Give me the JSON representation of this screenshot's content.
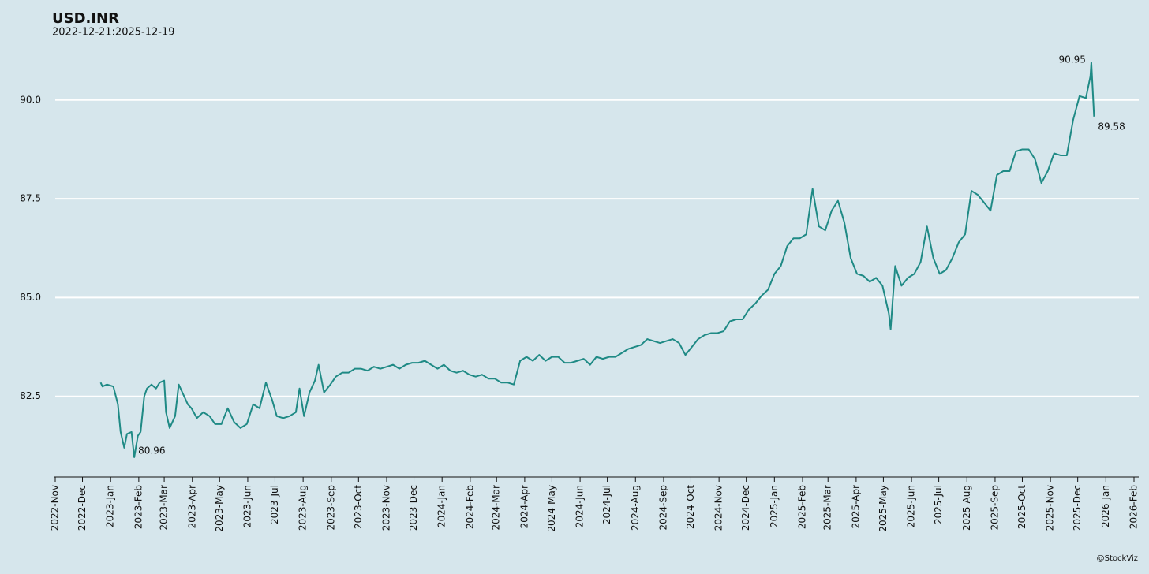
{
  "chart_data": {
    "type": "line",
    "title": "USD.INR",
    "subtitle": "2022-12-21:2025-12-19",
    "caption": "@StockViz",
    "x": [
      "2022-12-21",
      "2022-12-23",
      "2022-12-28",
      "2023-01-04",
      "2023-01-09",
      "2023-01-12",
      "2023-01-16",
      "2023-01-19",
      "2023-01-24",
      "2023-01-27",
      "2023-01-31",
      "2023-02-03",
      "2023-02-07",
      "2023-02-10",
      "2023-02-15",
      "2023-02-20",
      "2023-02-24",
      "2023-03-01",
      "2023-03-03",
      "2023-03-07",
      "2023-03-13",
      "2023-03-17",
      "2023-03-21",
      "2023-03-27",
      "2023-03-31",
      "2023-04-06",
      "2023-04-13",
      "2023-04-20",
      "2023-04-26",
      "2023-05-03",
      "2023-05-10",
      "2023-05-17",
      "2023-05-24",
      "2023-05-31",
      "2023-06-07",
      "2023-06-14",
      "2023-06-21",
      "2023-06-28",
      "2023-07-03",
      "2023-07-10",
      "2023-07-17",
      "2023-07-24",
      "2023-07-28",
      "2023-08-02",
      "2023-08-08",
      "2023-08-14",
      "2023-08-18",
      "2023-08-24",
      "2023-08-31",
      "2023-09-06",
      "2023-09-13",
      "2023-09-20",
      "2023-09-27",
      "2023-10-04",
      "2023-10-11",
      "2023-10-18",
      "2023-10-25",
      "2023-11-01",
      "2023-11-08",
      "2023-11-15",
      "2023-11-22",
      "2023-11-29",
      "2023-12-06",
      "2023-12-13",
      "2023-12-20",
      "2023-12-27",
      "2024-01-03",
      "2024-01-10",
      "2024-01-17",
      "2024-01-24",
      "2024-01-31",
      "2024-02-07",
      "2024-02-14",
      "2024-02-21",
      "2024-02-28",
      "2024-03-06",
      "2024-03-13",
      "2024-03-20",
      "2024-03-27",
      "2024-04-03",
      "2024-04-10",
      "2024-04-17",
      "2024-04-24",
      "2024-05-01",
      "2024-05-08",
      "2024-05-15",
      "2024-05-22",
      "2024-05-29",
      "2024-06-05",
      "2024-06-12",
      "2024-06-19",
      "2024-06-26",
      "2024-07-03",
      "2024-07-10",
      "2024-07-17",
      "2024-07-24",
      "2024-07-31",
      "2024-08-07",
      "2024-08-14",
      "2024-08-21",
      "2024-08-28",
      "2024-09-04",
      "2024-09-11",
      "2024-09-18",
      "2024-09-25",
      "2024-10-02",
      "2024-10-09",
      "2024-10-16",
      "2024-10-23",
      "2024-10-30",
      "2024-11-06",
      "2024-11-13",
      "2024-11-20",
      "2024-11-27",
      "2024-12-04",
      "2024-12-11",
      "2024-12-18",
      "2024-12-25",
      "2025-01-01",
      "2025-01-08",
      "2025-01-15",
      "2025-01-22",
      "2025-01-29",
      "2025-02-05",
      "2025-02-12",
      "2025-02-19",
      "2025-02-26",
      "2025-03-05",
      "2025-03-12",
      "2025-03-19",
      "2025-03-26",
      "2025-04-02",
      "2025-04-09",
      "2025-04-16",
      "2025-04-23",
      "2025-04-30",
      "2025-05-07",
      "2025-05-09",
      "2025-05-14",
      "2025-05-21",
      "2025-05-28",
      "2025-06-04",
      "2025-06-11",
      "2025-06-18",
      "2025-06-25",
      "2025-07-02",
      "2025-07-09",
      "2025-07-16",
      "2025-07-23",
      "2025-07-30",
      "2025-08-06",
      "2025-08-13",
      "2025-08-20",
      "2025-08-27",
      "2025-09-03",
      "2025-09-10",
      "2025-09-17",
      "2025-09-24",
      "2025-10-01",
      "2025-10-08",
      "2025-10-15",
      "2025-10-22",
      "2025-10-29",
      "2025-11-05",
      "2025-11-12",
      "2025-11-19",
      "2025-11-26",
      "2025-12-03",
      "2025-12-10",
      "2025-12-15",
      "2025-12-16",
      "2025-12-19"
    ],
    "series": [
      {
        "name": "USD.INR",
        "color": "#1f8a85",
        "values": [
          82.85,
          82.75,
          82.8,
          82.75,
          82.3,
          81.6,
          81.2,
          81.55,
          81.6,
          80.96,
          81.5,
          81.6,
          82.5,
          82.7,
          82.8,
          82.7,
          82.85,
          82.9,
          82.1,
          81.7,
          82.0,
          82.8,
          82.6,
          82.3,
          82.2,
          81.95,
          82.1,
          82.0,
          81.8,
          81.8,
          82.2,
          81.85,
          81.7,
          81.8,
          82.3,
          82.2,
          82.85,
          82.4,
          82.0,
          81.95,
          82.0,
          82.1,
          82.7,
          82.0,
          82.6,
          82.9,
          83.3,
          82.6,
          82.8,
          83.0,
          83.1,
          83.1,
          83.2,
          83.2,
          83.15,
          83.25,
          83.2,
          83.25,
          83.3,
          83.2,
          83.3,
          83.35,
          83.35,
          83.4,
          83.3,
          83.2,
          83.3,
          83.15,
          83.1,
          83.15,
          83.05,
          83.0,
          83.05,
          82.95,
          82.95,
          82.85,
          82.85,
          82.8,
          83.4,
          83.5,
          83.4,
          83.55,
          83.4,
          83.5,
          83.5,
          83.35,
          83.35,
          83.4,
          83.45,
          83.3,
          83.5,
          83.45,
          83.5,
          83.5,
          83.6,
          83.7,
          83.75,
          83.8,
          83.95,
          83.9,
          83.85,
          83.9,
          83.95,
          83.85,
          83.55,
          83.75,
          83.95,
          84.05,
          84.1,
          84.1,
          84.15,
          84.4,
          84.45,
          84.45,
          84.7,
          84.85,
          85.05,
          85.2,
          85.6,
          85.8,
          86.3,
          86.5,
          86.5,
          86.6,
          87.75,
          86.8,
          86.7,
          87.2,
          87.45,
          86.9,
          86.0,
          85.6,
          85.55,
          85.4,
          85.5,
          85.3,
          84.6,
          84.2,
          85.8,
          85.3,
          85.5,
          85.6,
          85.9,
          86.8,
          86.0,
          85.6,
          85.7,
          86.0,
          86.4,
          86.6,
          87.7,
          87.6,
          87.4,
          87.2,
          88.1,
          88.2,
          88.2,
          88.7,
          88.75,
          88.75,
          88.5,
          87.9,
          88.2,
          88.65,
          88.6,
          88.6,
          89.5,
          90.1,
          90.05,
          90.6,
          90.95,
          89.58
        ]
      }
    ],
    "annotations": [
      {
        "x": "2023-01-27",
        "value": 80.96,
        "side": "right"
      },
      {
        "x": "2025-12-16",
        "value": 90.95,
        "side": "left"
      },
      {
        "x": "2025-12-19",
        "value": 89.58,
        "side": "right"
      }
    ],
    "xlim": [
      "2022-11-01",
      "2026-02-01"
    ],
    "xticks": [
      {
        "value": "2022-11-01",
        "label": "2022-Nov"
      },
      {
        "value": "2022-12-01",
        "label": "2022-Dec"
      },
      {
        "value": "2023-01-01",
        "label": "2023-Jan"
      },
      {
        "value": "2023-02-01",
        "label": "2023-Feb"
      },
      {
        "value": "2023-03-01",
        "label": "2023-Mar"
      },
      {
        "value": "2023-04-01",
        "label": "2023-Apr"
      },
      {
        "value": "2023-05-01",
        "label": "2023-May"
      },
      {
        "value": "2023-06-01",
        "label": "2023-Jun"
      },
      {
        "value": "2023-07-01",
        "label": "2023-Jul"
      },
      {
        "value": "2023-08-01",
        "label": "2023-Aug"
      },
      {
        "value": "2023-09-01",
        "label": "2023-Sep"
      },
      {
        "value": "2023-10-01",
        "label": "2023-Oct"
      },
      {
        "value": "2023-11-01",
        "label": "2023-Nov"
      },
      {
        "value": "2023-12-01",
        "label": "2023-Dec"
      },
      {
        "value": "2024-01-01",
        "label": "2024-Jan"
      },
      {
        "value": "2024-02-01",
        "label": "2024-Feb"
      },
      {
        "value": "2024-03-01",
        "label": "2024-Mar"
      },
      {
        "value": "2024-04-01",
        "label": "2024-Apr"
      },
      {
        "value": "2024-05-01",
        "label": "2024-May"
      },
      {
        "value": "2024-06-01",
        "label": "2024-Jun"
      },
      {
        "value": "2024-07-01",
        "label": "2024-Jul"
      },
      {
        "value": "2024-08-01",
        "label": "2024-Aug"
      },
      {
        "value": "2024-09-01",
        "label": "2024-Sep"
      },
      {
        "value": "2024-10-01",
        "label": "2024-Oct"
      },
      {
        "value": "2024-11-01",
        "label": "2024-Nov"
      },
      {
        "value": "2024-12-01",
        "label": "2024-Dec"
      },
      {
        "value": "2025-01-01",
        "label": "2025-Jan"
      },
      {
        "value": "2025-02-01",
        "label": "2025-Feb"
      },
      {
        "value": "2025-03-01",
        "label": "2025-Mar"
      },
      {
        "value": "2025-04-01",
        "label": "2025-Apr"
      },
      {
        "value": "2025-05-01",
        "label": "2025-May"
      },
      {
        "value": "2025-06-01",
        "label": "2025-Jun"
      },
      {
        "value": "2025-07-01",
        "label": "2025-Jul"
      },
      {
        "value": "2025-08-01",
        "label": "2025-Aug"
      },
      {
        "value": "2025-09-01",
        "label": "2025-Sep"
      },
      {
        "value": "2025-10-01",
        "label": "2025-Oct"
      },
      {
        "value": "2025-11-01",
        "label": "2025-Nov"
      },
      {
        "value": "2025-12-01",
        "label": "2025-Dec"
      },
      {
        "value": "2026-01-01",
        "label": "2026-Jan"
      },
      {
        "value": "2026-02-01",
        "label": "2026-Feb"
      }
    ],
    "ylim": [
      80.5,
      91.5
    ],
    "yticks": [
      82.5,
      {
        "value": 85,
        "label": "85.0"
      },
      87.5,
      {
        "value": 90,
        "label": "90.0"
      }
    ],
    "grid": true
  }
}
